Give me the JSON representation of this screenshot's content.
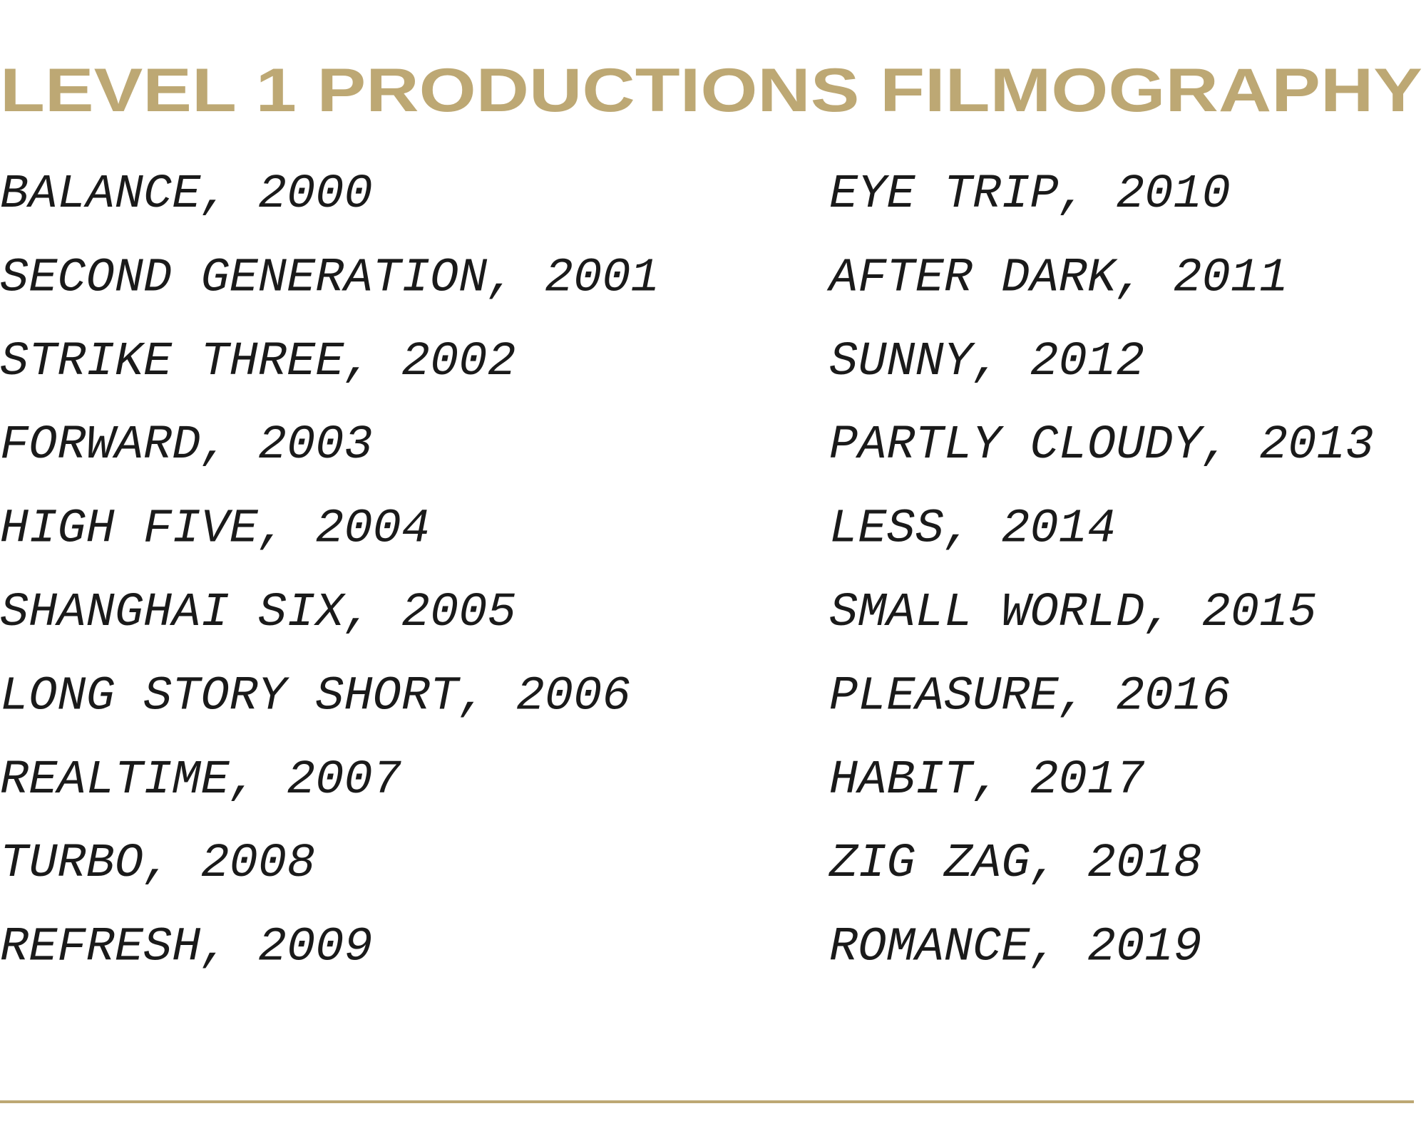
{
  "header": {
    "title": "LEVEL 1 PRODUCTIONS FILMOGRAPHY"
  },
  "columns": [
    [
      "BALANCE, 2000",
      "SECOND GENERATION, 2001",
      "STRIKE THREE, 2002",
      "FORWARD, 2003",
      "HIGH FIVE, 2004",
      "SHANGHAI SIX, 2005",
      "LONG STORY SHORT, 2006",
      "REALTIME, 2007",
      "TURBO, 2008",
      "REFRESH, 2009"
    ],
    [
      "EYE TRIP, 2010",
      "AFTER DARK, 2011",
      "SUNNY, 2012",
      "PARTLY CLOUDY, 2013",
      "LESS, 2014",
      "SMALL WORLD, 2015",
      "PLEASURE, 2016",
      "HABIT, 2017",
      "ZIG ZAG, 2018",
      "ROMANCE, 2019"
    ]
  ]
}
